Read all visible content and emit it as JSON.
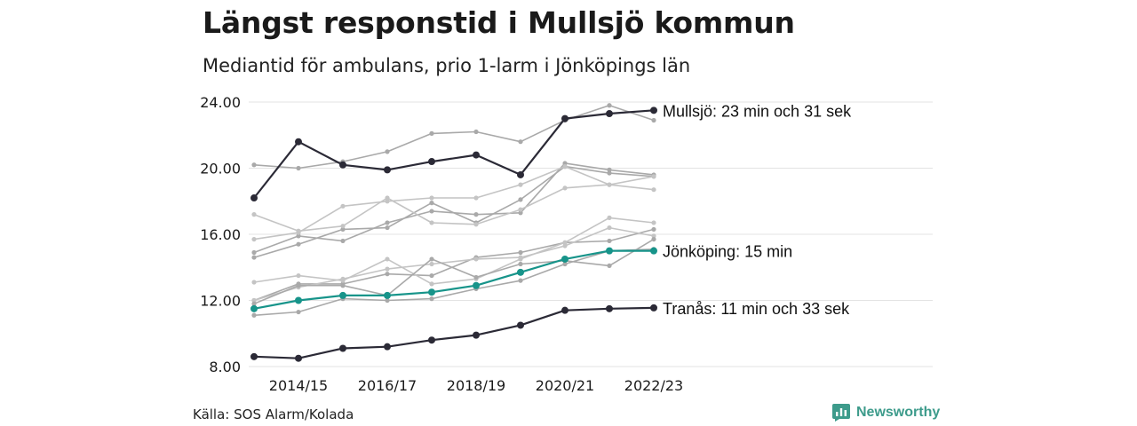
{
  "title": "Längst responstid i Mullsjö kommun",
  "subtitle": "Mediantid för ambulans, prio 1-larm i Jönköpings län",
  "source": "Källa: SOS Alarm/Kolada",
  "brand": {
    "name": "Newsworthy",
    "icon": "newsworthy-logo-icon",
    "color": "#3d9b8b"
  },
  "colors": {
    "highlight_dark": "#2b2a36",
    "highlight_teal": "#17948a",
    "background_lines": [
      "#a9a9a9",
      "#c4c4c4"
    ],
    "grid": "#e3e3e3"
  },
  "chart_data": {
    "type": "line",
    "x": [
      "2013/14",
      "2014/15",
      "2015/16",
      "2016/17",
      "2017/18",
      "2018/19",
      "2019/20",
      "2020/21",
      "2021/22",
      "2022/23"
    ],
    "x_tick_labels": [
      "2014/15",
      "2016/17",
      "2018/19",
      "2020/21",
      "2022/23"
    ],
    "y_tick_labels": [
      "8.00",
      "12.00",
      "16.00",
      "20.00",
      "24.00"
    ],
    "ylim": [
      8,
      24
    ],
    "grid": true,
    "highlight_series": [
      {
        "label": "Mullsjö: 23 min och 31 sek",
        "color": "#2b2a36",
        "values": [
          18.2,
          21.6,
          20.2,
          19.9,
          20.4,
          20.8,
          19.6,
          23.0,
          23.3,
          23.5
        ]
      },
      {
        "label": "Jönköping: 15 min",
        "color": "#17948a",
        "values": [
          11.5,
          12.0,
          12.3,
          12.3,
          12.5,
          12.9,
          13.7,
          14.5,
          15.0,
          15.0
        ]
      },
      {
        "label": "Tranås: 11 min och 33 sek",
        "color": "#2b2a36",
        "values": [
          8.6,
          8.5,
          9.1,
          9.2,
          9.6,
          9.9,
          10.5,
          11.4,
          11.5,
          11.55
        ]
      }
    ],
    "background_series": [
      {
        "color": "#a9a9a9",
        "values": [
          20.2,
          20.0,
          20.4,
          21.0,
          22.1,
          22.2,
          21.6,
          22.9,
          23.8,
          22.9
        ]
      },
      {
        "color": "#a9a9a9",
        "values": [
          14.9,
          15.9,
          15.6,
          16.7,
          17.4,
          17.2,
          17.3,
          20.3,
          19.9,
          19.6
        ]
      },
      {
        "color": "#a9a9a9",
        "values": [
          14.6,
          15.4,
          16.3,
          16.4,
          17.9,
          16.7,
          18.1,
          20.1,
          19.7,
          19.5
        ]
      },
      {
        "color": "#c4c4c4",
        "values": [
          17.2,
          16.2,
          16.5,
          18.2,
          16.7,
          16.6,
          17.5,
          18.8,
          19.0,
          19.5
        ]
      },
      {
        "color": "#c4c4c4",
        "values": [
          15.7,
          16.1,
          17.7,
          18.0,
          18.2,
          18.2,
          19.0,
          20.1,
          19.0,
          18.7
        ]
      },
      {
        "color": "#a9a9a9",
        "values": [
          12.0,
          13.0,
          13.0,
          13.6,
          13.5,
          14.6,
          14.9,
          15.5,
          15.6,
          16.3
        ]
      },
      {
        "color": "#c4c4c4",
        "values": [
          13.1,
          13.5,
          13.2,
          14.5,
          13.0,
          13.3,
          14.5,
          15.5,
          17.0,
          16.7
        ]
      },
      {
        "color": "#a9a9a9",
        "values": [
          11.1,
          11.3,
          12.1,
          12.0,
          12.1,
          12.7,
          13.2,
          14.2,
          15.0,
          15.1
        ]
      },
      {
        "color": "#c4c4c4",
        "values": [
          12.0,
          12.8,
          13.3,
          13.9,
          14.2,
          14.5,
          14.6,
          15.3,
          16.4,
          15.9
        ]
      },
      {
        "color": "#a9a9a9",
        "values": [
          11.8,
          12.9,
          12.9,
          12.3,
          14.5,
          13.4,
          14.2,
          14.4,
          14.1,
          15.7
        ]
      }
    ]
  }
}
